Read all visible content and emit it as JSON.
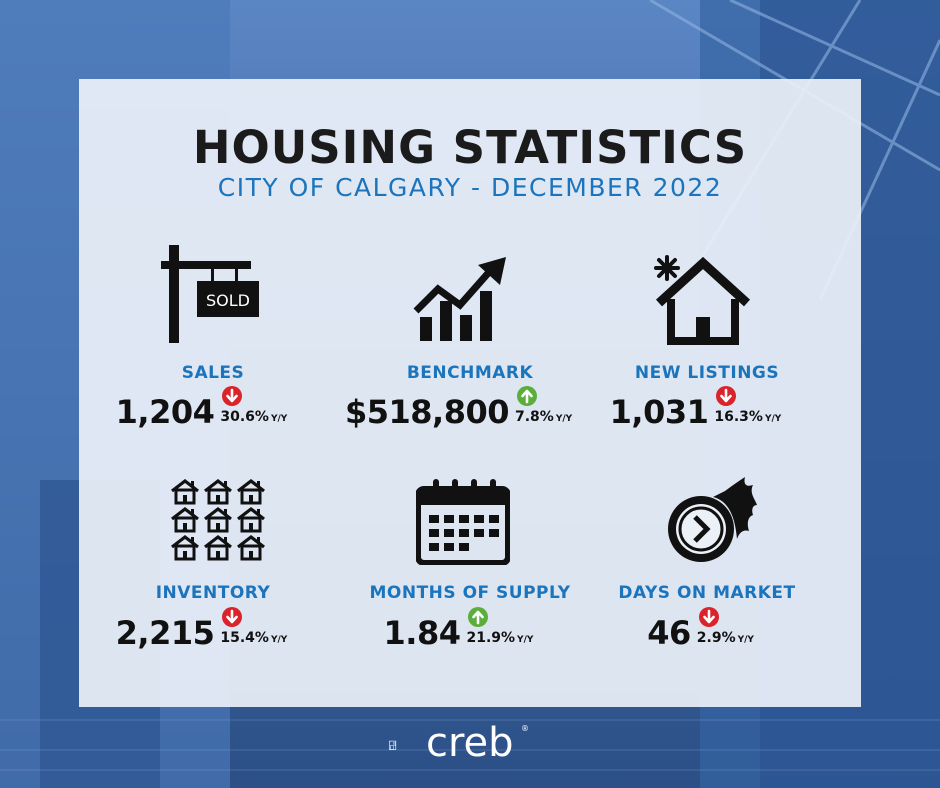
{
  "title": "HOUSING STATISTICS",
  "subtitle": "CITY OF CALGARY - DECEMBER 2022",
  "stats": [
    {
      "label": "SALES",
      "value": "1,204",
      "change": "30.6%",
      "unit": "Y/Y",
      "direction": "down",
      "icon": "sold-sign-icon"
    },
    {
      "label": "BENCHMARK",
      "value": "$518,800",
      "change": "7.8%",
      "unit": "Y/Y",
      "direction": "up",
      "icon": "growth-chart-icon"
    },
    {
      "label": "NEW LISTINGS",
      "value": "1,031",
      "change": "16.3%",
      "unit": "Y/Y",
      "direction": "down",
      "icon": "new-house-icon"
    },
    {
      "label": "INVENTORY",
      "value": "2,215",
      "change": "15.4%",
      "unit": "Y/Y",
      "direction": "down",
      "icon": "houses-grid-icon"
    },
    {
      "label": "MONTHS OF SUPPLY",
      "value": "1.84",
      "change": "21.9%",
      "unit": "Y/Y",
      "direction": "up",
      "icon": "calendar-icon"
    },
    {
      "label": "DAYS ON MARKET",
      "value": "46",
      "change": "2.9%",
      "unit": "Y/Y",
      "direction": "down",
      "icon": "fast-clock-icon"
    }
  ],
  "sold_sign_text": "SOLD",
  "brand": {
    "name": "creb",
    "registered": "®"
  },
  "colors": {
    "accent_blue": "#1c75bc",
    "down_red": "#d9242b",
    "up_green": "#5cae3c",
    "background_blue": "#3f6fae"
  }
}
